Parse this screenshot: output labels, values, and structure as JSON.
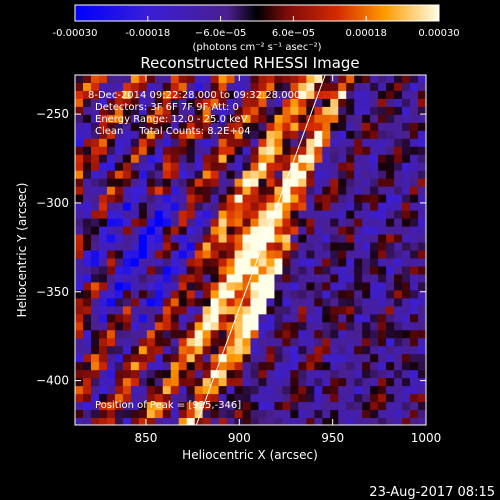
{
  "chart_data": {
    "type": "heatmap",
    "title": "Reconstructed RHESSI Image",
    "xlabel": "Heliocentric X (arcsec)",
    "ylabel": "Heliocentric Y (arcsec)",
    "xlim": [
      812,
      1000
    ],
    "ylim": [
      -425,
      -228
    ],
    "x_ticks": [
      850,
      900,
      950,
      1000
    ],
    "y_ticks": [
      -250,
      -300,
      -350,
      -400
    ],
    "colorbar": {
      "range": [
        -0.0003,
        0.0003
      ],
      "tick_values": [
        -0.0003,
        -0.00018,
        -6e-05,
        6e-05,
        0.00018,
        0.0003
      ],
      "tick_labels": [
        "-0.00030",
        "-0.00018",
        "−6.0e−05",
        "6.0e−05",
        "0.00018",
        "0.00030"
      ],
      "unit_label": "(photons cm⁻² s⁻¹ asec⁻²)"
    },
    "annotations": [
      "8-Dec-2014 09:22:28.000 to 09:32:28.000",
      "Detectors: 3F 6F 7F 9F  Att: 0",
      "Energy Range: 12.0 - 25.0 keV",
      "Clean     Total Counts: 8.2E+04",
      "Position of Peak = [925,-346]"
    ],
    "peak": {
      "x": 925,
      "y": -346
    },
    "limb_line": [
      [
        877,
        -425
      ],
      [
        946,
        -228
      ]
    ],
    "grid": false
  },
  "footer": {
    "timestamp": "23-Aug-2017 08:15"
  },
  "colors": {
    "background": "#000000",
    "text": "#ffffff",
    "limb": "#ffffff"
  }
}
